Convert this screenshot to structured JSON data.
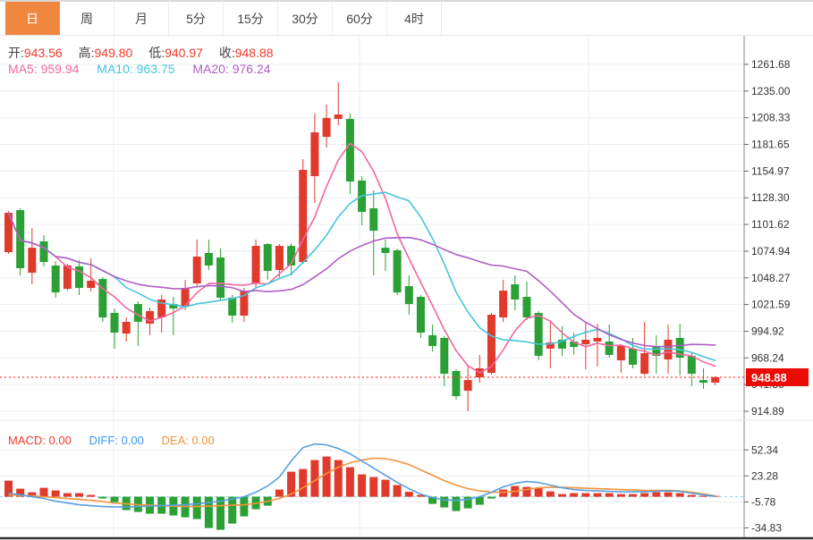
{
  "tabs": {
    "items": [
      {
        "id": "day",
        "label": "日",
        "active": true
      },
      {
        "id": "week",
        "label": "周",
        "active": false
      },
      {
        "id": "month",
        "label": "月",
        "active": false
      },
      {
        "id": "5min",
        "label": "5分",
        "active": false
      },
      {
        "id": "15min",
        "label": "15分",
        "active": false
      },
      {
        "id": "30min",
        "label": "30分",
        "active": false
      },
      {
        "id": "60min",
        "label": "60分",
        "active": false
      },
      {
        "id": "4hour",
        "label": "4时",
        "active": false
      }
    ]
  },
  "ohlc": {
    "open_label": "开:",
    "open": "943.56",
    "high_label": "高:",
    "high": "949.80",
    "low_label": "低:",
    "low": "940.97",
    "close_label": "收:",
    "close": "948.88"
  },
  "ma_header": {
    "ma5_label": "MA5:",
    "ma5": "959.94",
    "ma10_label": "MA10:",
    "ma10": "963.75",
    "ma20_label": "MA20:",
    "ma20": "976.24"
  },
  "macd_header": {
    "macd_label": "MACD:",
    "macd": "0.00",
    "diff_label": "DIFF:",
    "diff": "0.00",
    "dea_label": "DEA:",
    "dea": "0.00"
  },
  "colors": {
    "up": "#e03a2c",
    "down": "#2ba135",
    "ma5": "#f0679e",
    "ma10": "#45c5dc",
    "ma20": "#af5fc5",
    "diff_line": "#57a0e0",
    "dea_line": "#f5923c",
    "macd_label": "#f3392c",
    "diff_label": "#3b97f0",
    "dea_label": "#f5923c",
    "grid": "#e9edf3",
    "axis_line": "#999999",
    "axis_text": "#333333",
    "price_line": "#ff3b30",
    "price_tag_bg": "#ea0b05",
    "price_tag_text": "#ffffff",
    "zero_dash": "#a5d9ec",
    "tab_active_bg": "#f0873f",
    "bottom_border": "#333333"
  },
  "price_tag": {
    "value": "948.88"
  },
  "chart_data": {
    "type": "candlestick+macd",
    "title": "Daily K-line with MA5/MA10/MA20 and MACD",
    "legend_position": "top-left",
    "grid": true,
    "main": {
      "y_ticks": [
        1261.68,
        1235.0,
        1208.33,
        1181.65,
        1154.97,
        1128.3,
        1101.62,
        1074.94,
        1048.27,
        1021.59,
        994.92,
        968.24,
        941.56,
        914.89
      ],
      "ylim": [
        914.89,
        1261.68
      ],
      "current_price": 948.88,
      "ma_periods": [
        5,
        10,
        20
      ],
      "candles_format": [
        "open",
        "high",
        "low",
        "close"
      ],
      "candles": [
        [
          1074.0,
          1115.1,
          1072.2,
          1113.3
        ],
        [
          1116.0,
          1117.8,
          1050.7,
          1057.9
        ],
        [
          1053.4,
          1098.1,
          1041.8,
          1078.4
        ],
        [
          1084.7,
          1090.9,
          1059.7,
          1064.1
        ],
        [
          1060.6,
          1065.0,
          1028.4,
          1033.7
        ],
        [
          1037.3,
          1062.3,
          1035.5,
          1060.6
        ],
        [
          1059.7,
          1065.9,
          1031.1,
          1038.2
        ],
        [
          1038.2,
          1067.7,
          1034.6,
          1045.4
        ],
        [
          1047.1,
          1048.9,
          1004.3,
          1008.7
        ],
        [
          1013.2,
          1017.6,
          977.5,
          993.5
        ],
        [
          992.6,
          1008.7,
          984.6,
          1004.3
        ],
        [
          1022.1,
          1024.8,
          980.1,
          1004.3
        ],
        [
          1002.5,
          1018.5,
          990.9,
          1015.0
        ],
        [
          1008.7,
          1031.1,
          993.5,
          1026.6
        ],
        [
          1022.1,
          1029.3,
          990.9,
          1017.6
        ],
        [
          1019.4,
          1046.3,
          1015.9,
          1038.2
        ],
        [
          1042.7,
          1086.5,
          1040.0,
          1069.5
        ],
        [
          1073.1,
          1086.5,
          1056.1,
          1060.6
        ],
        [
          1068.6,
          1077.5,
          1025.7,
          1028.4
        ],
        [
          1028.4,
          1031.1,
          1003.4,
          1010.5
        ],
        [
          1010.5,
          1038.2,
          1004.3,
          1035.5
        ],
        [
          1042.7,
          1086.5,
          1038.2,
          1080.2
        ],
        [
          1082.0,
          1082.9,
          1046.3,
          1055.2
        ],
        [
          1056.1,
          1082.0,
          1048.9,
          1080.2
        ],
        [
          1080.2,
          1082.9,
          1050.7,
          1060.6
        ],
        [
          1064.1,
          1166.9,
          1062.3,
          1156.2
        ],
        [
          1149.9,
          1212.5,
          1123.1,
          1193.7
        ],
        [
          1189.2,
          1221.5,
          1178.5,
          1208.0
        ],
        [
          1207.1,
          1243.8,
          1200.9,
          1211.6
        ],
        [
          1207.1,
          1212.5,
          1132.0,
          1144.6
        ],
        [
          1145.5,
          1149.9,
          1100.8,
          1114.2
        ],
        [
          1117.8,
          1135.6,
          1050.7,
          1095.4
        ],
        [
          1078.4,
          1086.5,
          1055.2,
          1073.1
        ],
        [
          1075.8,
          1077.5,
          1031.1,
          1033.7
        ],
        [
          1040.0,
          1050.7,
          1011.4,
          1022.1
        ],
        [
          1029.3,
          1031.1,
          988.2,
          993.5
        ],
        [
          990.9,
          1001.6,
          974.8,
          980.1
        ],
        [
          988.2,
          990.0,
          939.9,
          952.4
        ],
        [
          955.1,
          956.9,
          926.5,
          930.0
        ],
        [
          935.4,
          961.4,
          914.9,
          946.1
        ],
        [
          948.8,
          971.2,
          943.4,
          957.8
        ],
        [
          953.3,
          1013.2,
          951.5,
          1011.4
        ],
        [
          1008.7,
          1046.3,
          1004.3,
          1035.5
        ],
        [
          1041.8,
          1050.7,
          1015.9,
          1026.6
        ],
        [
          1029.3,
          1044.5,
          1006.1,
          1008.7
        ],
        [
          1013.2,
          1015.0,
          965.8,
          970.3
        ],
        [
          977.5,
          1004.3,
          957.8,
          983.7
        ],
        [
          986.4,
          999.8,
          970.3,
          977.5
        ],
        [
          984.6,
          993.5,
          971.2,
          979.2
        ],
        [
          981.9,
          1004.3,
          956.9,
          986.4
        ],
        [
          984.6,
          1002.5,
          959.6,
          988.2
        ],
        [
          984.6,
          1001.6,
          968.5,
          971.2
        ],
        [
          965.8,
          981.9,
          953.3,
          980.1
        ],
        [
          977.5,
          988.2,
          957.8,
          961.4
        ],
        [
          952.4,
          1004.3,
          950.6,
          973.0
        ],
        [
          980.1,
          990.9,
          952.4,
          970.3
        ],
        [
          966.7,
          1001.6,
          952.4,
          986.4
        ],
        [
          988.2,
          1002.5,
          950.6,
          968.5
        ],
        [
          970.3,
          973.0,
          939.9,
          952.4
        ],
        [
          946.1,
          957.8,
          937.2,
          943.4
        ],
        [
          943.56,
          949.8,
          940.97,
          948.88
        ]
      ]
    },
    "macd": {
      "y_ticks": [
        52.34,
        23.28,
        -5.78,
        -34.83
      ],
      "ylim": [
        -34.83,
        52.34
      ],
      "histogram": [
        18,
        9,
        5,
        10,
        7,
        4,
        4,
        2,
        -2,
        -6,
        -15,
        -17,
        -19,
        -19,
        -21,
        -23,
        -25,
        -35,
        -37,
        -30,
        -22,
        -14,
        -10,
        8,
        28,
        31,
        41,
        45,
        41,
        33,
        25,
        22,
        19,
        13,
        5.5,
        2,
        -8,
        -12,
        -16,
        -13,
        -9,
        -2,
        8,
        12,
        11,
        10,
        6,
        3,
        4,
        4,
        4,
        4,
        3,
        3,
        4,
        5,
        5,
        4,
        2,
        1,
        0.5
      ],
      "diff": [
        4,
        2,
        0,
        -2,
        -5,
        -7,
        -9,
        -10,
        -11,
        -11.5,
        -11.5,
        -11,
        -10.5,
        -10,
        -9.5,
        -9,
        -8,
        -6.5,
        -5,
        -2.5,
        0,
        5,
        12,
        22,
        40,
        55,
        59,
        58,
        54,
        48,
        40,
        32,
        24,
        16,
        9,
        3,
        -1,
        -3.5,
        -4,
        -3,
        0,
        5,
        11,
        15,
        17,
        16,
        13,
        10,
        8,
        7,
        6.5,
        6,
        5.5,
        5.5,
        5.5,
        6,
        6.5,
        6,
        4,
        2,
        0.5
      ],
      "dea": [
        2,
        1.5,
        1,
        0,
        -1,
        -2,
        -3,
        -4,
        -5.5,
        -7,
        -8,
        -9,
        -9.5,
        -10,
        -10.5,
        -11,
        -11,
        -10.5,
        -10,
        -9.5,
        -9,
        -7.5,
        -5,
        -2,
        3,
        10,
        18,
        26,
        33,
        38,
        41,
        43,
        42.5,
        40,
        36,
        30,
        24,
        18,
        13,
        9,
        6.5,
        5,
        5,
        6,
        8,
        10,
        10.5,
        10.5,
        10,
        9.5,
        9,
        8.5,
        8,
        7.5,
        7,
        7,
        7,
        6.5,
        5,
        3,
        1
      ]
    }
  }
}
